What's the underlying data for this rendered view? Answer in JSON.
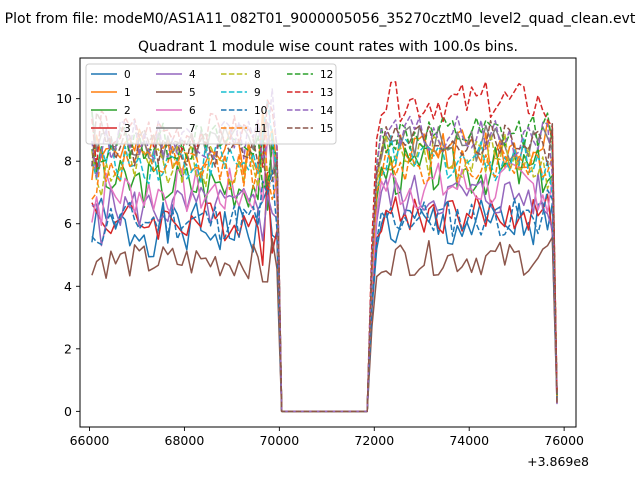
{
  "suptitle": "Plot from file: modeM0/AS1A11_082T01_9000005056_35270cztM0_level2_quad_clean.evt",
  "chart_data": {
    "type": "line",
    "title": "Quadrant 1 module wise count rates with 100.0s bins.",
    "xlabel": "",
    "ylabel": "",
    "x_offset_label": "+3.869e8",
    "xlim": [
      65800,
      76250
    ],
    "ylim": [
      -0.5,
      11.3
    ],
    "x_ticks": [
      66000,
      68000,
      70000,
      72000,
      74000,
      76000
    ],
    "x_tick_labels": [
      "66000",
      "68000",
      "70000",
      "72000",
      "74000",
      "76000"
    ],
    "y_ticks": [
      0,
      2,
      4,
      6,
      8,
      10
    ],
    "y_tick_labels": [
      "0",
      "2",
      "4",
      "6",
      "8",
      "10"
    ],
    "grid": false,
    "legend_position": "upper-left",
    "segments": {
      "seg1_start": 66050,
      "seg1_end": 69950,
      "gap_start": 70050,
      "gap_end": 71850,
      "seg2_start": 71950,
      "seg2_end": 75850,
      "bin": 100
    },
    "series": [
      {
        "name": "0",
        "color": "#1f77b4",
        "dash": "solid",
        "level1": 5.8,
        "level2": 5.9,
        "amp": 0.55,
        "seed": 1
      },
      {
        "name": "1",
        "color": "#ff7f0e",
        "dash": "solid",
        "level1": 8.3,
        "level2": 8.4,
        "amp": 0.45,
        "seed": 2
      },
      {
        "name": "2",
        "color": "#2ca02c",
        "dash": "solid",
        "level1": 7.3,
        "level2": 7.7,
        "amp": 0.5,
        "seed": 3
      },
      {
        "name": "3",
        "color": "#d62728",
        "dash": "solid",
        "level1": 6.1,
        "level2": 6.3,
        "amp": 0.4,
        "seed": 4
      },
      {
        "name": "4",
        "color": "#9467bd",
        "dash": "solid",
        "level1": 6.5,
        "level2": 6.9,
        "amp": 0.45,
        "seed": 5
      },
      {
        "name": "5",
        "color": "#8c564b",
        "dash": "solid",
        "level1": 4.8,
        "level2": 4.9,
        "amp": 0.35,
        "seed": 6
      },
      {
        "name": "6",
        "color": "#e377c2",
        "dash": "solid",
        "level1": 7.0,
        "level2": 7.2,
        "amp": 0.5,
        "seed": 7
      },
      {
        "name": "7",
        "color": "#7f7f7f",
        "dash": "solid",
        "level1": 8.6,
        "level2": 8.6,
        "amp": 0.4,
        "seed": 8
      },
      {
        "name": "8",
        "color": "#bcbd22",
        "dash": "dashed",
        "level1": 7.8,
        "level2": 8.2,
        "amp": 0.45,
        "seed": 9
      },
      {
        "name": "9",
        "color": "#17becf",
        "dash": "dashed",
        "level1": 8.0,
        "level2": 8.1,
        "amp": 0.45,
        "seed": 10
      },
      {
        "name": "10",
        "color": "#1f77b4",
        "dash": "dashed",
        "level1": 6.1,
        "level2": 6.2,
        "amp": 0.4,
        "seed": 11
      },
      {
        "name": "11",
        "color": "#ff7f0e",
        "dash": "dashed",
        "level1": 7.8,
        "level2": 8.0,
        "amp": 0.45,
        "seed": 12
      },
      {
        "name": "12",
        "color": "#2ca02c",
        "dash": "dashed",
        "level1": 8.6,
        "level2": 8.9,
        "amp": 0.4,
        "seed": 13
      },
      {
        "name": "13",
        "color": "#d62728",
        "dash": "dashed",
        "level1": 8.9,
        "level2": 9.9,
        "amp": 0.4,
        "seed": 14
      },
      {
        "name": "14",
        "color": "#9467bd",
        "dash": "dashed",
        "level1": 8.7,
        "level2": 8.8,
        "amp": 0.4,
        "seed": 15
      },
      {
        "name": "15",
        "color": "#8c564b",
        "dash": "dashed",
        "level1": 8.4,
        "level2": 8.7,
        "amp": 0.4,
        "seed": 16
      }
    ],
    "extra_line_color": "#e89ca0"
  }
}
